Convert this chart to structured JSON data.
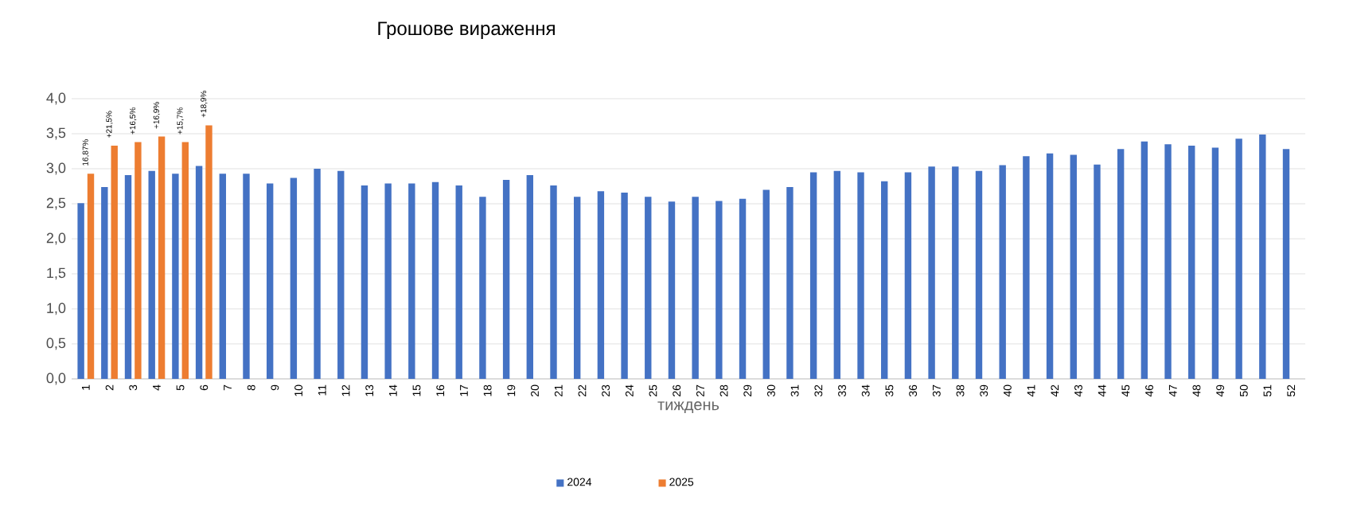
{
  "chart_data": {
    "type": "bar",
    "title": "Грошове вираження",
    "xlabel": "тиждень",
    "categories": [
      "1",
      "2",
      "3",
      "4",
      "5",
      "6",
      "7",
      "8",
      "9",
      "10",
      "11",
      "12",
      "13",
      "14",
      "15",
      "16",
      "17",
      "18",
      "19",
      "20",
      "21",
      "22",
      "23",
      "24",
      "25",
      "26",
      "27",
      "28",
      "29",
      "30",
      "31",
      "32",
      "33",
      "34",
      "35",
      "36",
      "37",
      "38",
      "39",
      "40",
      "41",
      "42",
      "43",
      "44",
      "45",
      "46",
      "47",
      "48",
      "49",
      "50",
      "51",
      "52"
    ],
    "series": [
      {
        "name": "2024",
        "color": "#4472c4",
        "values": [
          2.51,
          2.74,
          2.91,
          2.97,
          2.93,
          3.04,
          2.93,
          2.93,
          2.79,
          2.87,
          3.0,
          2.97,
          2.76,
          2.79,
          2.79,
          2.81,
          2.76,
          2.6,
          2.84,
          2.91,
          2.76,
          2.6,
          2.68,
          2.66,
          2.6,
          2.53,
          2.6,
          2.54,
          2.57,
          2.7,
          2.74,
          2.95,
          2.97,
          2.95,
          2.82,
          2.95,
          3.03,
          3.03,
          2.97,
          3.05,
          3.18,
          3.22,
          3.2,
          3.06,
          3.28,
          3.39,
          3.35,
          3.33,
          3.3,
          3.43,
          3.49,
          3.28
        ]
      },
      {
        "name": "2025",
        "color": "#ed7d31",
        "values": [
          2.93,
          3.33,
          3.38,
          3.46,
          3.38,
          3.62,
          null,
          null,
          null,
          null,
          null,
          null,
          null,
          null,
          null,
          null,
          null,
          null,
          null,
          null,
          null,
          null,
          null,
          null,
          null,
          null,
          null,
          null,
          null,
          null,
          null,
          null,
          null,
          null,
          null,
          null,
          null,
          null,
          null,
          null,
          null,
          null,
          null,
          null,
          null,
          null,
          null,
          null,
          null,
          null,
          null,
          null
        ]
      }
    ],
    "annotations": [
      {
        "text": "16,87%",
        "x": "1",
        "y": 2.93
      },
      {
        "text": "+21,5%",
        "x": "2",
        "y": 3.33
      },
      {
        "text": "+16,5%",
        "x": "3",
        "y": 3.38
      },
      {
        "text": "+16,9%",
        "x": "4",
        "y": 3.46
      },
      {
        "text": "+15,7%",
        "x": "5",
        "y": 3.38
      },
      {
        "text": "+18,9%",
        "x": "6",
        "y": 3.62
      }
    ],
    "ylim": [
      0,
      4.0
    ],
    "yticks": [
      {
        "value": 0,
        "label": "0,0"
      },
      {
        "value": 0.5,
        "label": "0,5"
      },
      {
        "value": 1.0,
        "label": "1,0"
      },
      {
        "value": 1.5,
        "label": "1,5"
      },
      {
        "value": 2.0,
        "label": "2,0"
      },
      {
        "value": 2.5,
        "label": "2,5"
      },
      {
        "value": 3.0,
        "label": "3,0"
      },
      {
        "value": 3.5,
        "label": "3,5"
      },
      {
        "value": 4.0,
        "label": "4,0"
      }
    ],
    "grid": "y",
    "legend": "bottom"
  }
}
